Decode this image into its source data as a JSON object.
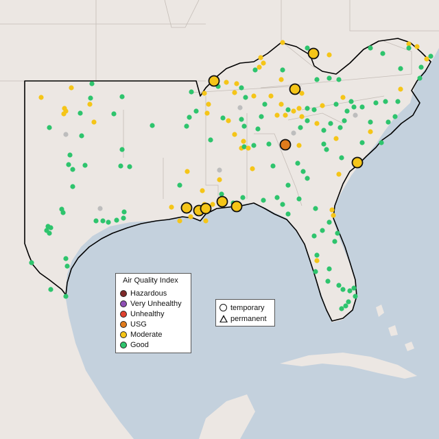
{
  "legend": {
    "title": "Air Quality Index",
    "categories": [
      {
        "label": "Hazardous",
        "color": "#7e2a2a"
      },
      {
        "label": "Very Unhealthy",
        "color": "#8f4fb5"
      },
      {
        "label": "Unhealthy",
        "color": "#e0412e"
      },
      {
        "label": "USG",
        "color": "#e07b1c"
      },
      {
        "label": "Moderate",
        "color": "#f5c518"
      },
      {
        "label": "Good",
        "color": "#2ec46d"
      }
    ]
  },
  "type_legend": {
    "temporary": "temporary",
    "permanent": "permanent"
  },
  "colors": {
    "land": "#ece7e3",
    "ocean": "#c3d0dd",
    "nodata": "#bdbdbd"
  }
}
